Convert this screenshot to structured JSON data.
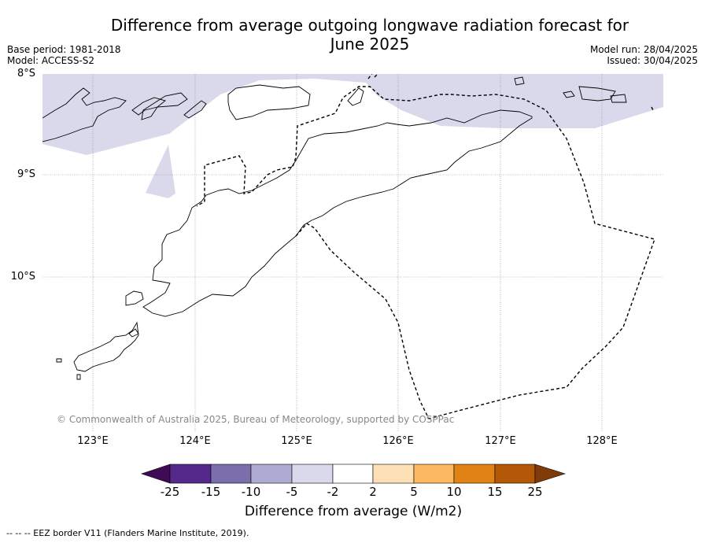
{
  "title": "Difference from average outgoing longwave radiation forecast for June 2025",
  "title_line1": "Difference from average outgoing longwave radiation forecast for",
  "title_line2": "June 2025",
  "meta_left": {
    "base_period": "Base period: 1981-2018",
    "model": "Model: ACCESS-S2"
  },
  "meta_right": {
    "model_run": "Model run: 28/04/2025",
    "issued": "Issued: 30/04/2025"
  },
  "lat_labels": [
    "8°S",
    "9°S",
    "10°S"
  ],
  "lon_labels": [
    "123°E",
    "124°E",
    "125°E",
    "126°E",
    "127°E",
    "128°E"
  ],
  "copyright": "© Commonwealth of Australia 2025, Bureau of Meteorology, supported by COSPPac",
  "colorbar": {
    "ticks": [
      "-25",
      "-15",
      "-10",
      "-5",
      "-2",
      "2",
      "5",
      "10",
      "15",
      "25"
    ],
    "colors": [
      "#3f0a56",
      "#55298b",
      "#7b6fab",
      "#aeabd3",
      "#d9d9eb",
      "#ffffff",
      "#fee0b7",
      "#fdb863",
      "#e08214",
      "#b35806",
      "#7f3b08"
    ],
    "title": "Difference from average (W/m2)"
  },
  "footnote": "--  --  -- EEZ border V11 (Flanders Marine Institute, 2019).",
  "map": {
    "anomaly_region_color": "#d9d9eb",
    "anomaly_class": "-5 to -2"
  }
}
